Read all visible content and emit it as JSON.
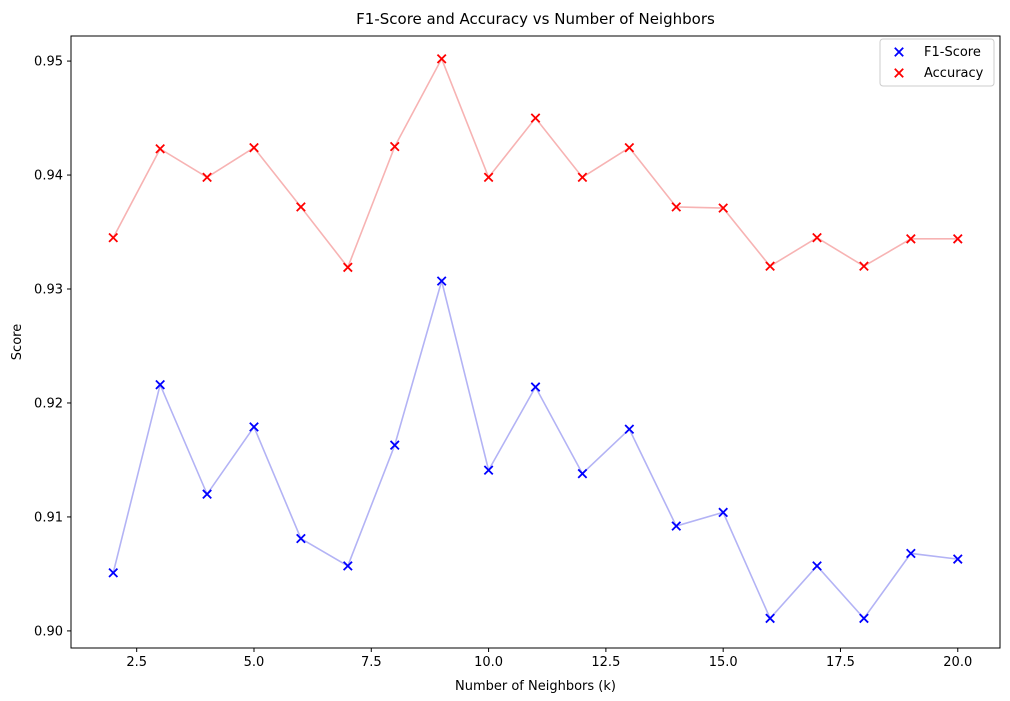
{
  "chart_data": {
    "type": "scatter",
    "title": "F1-Score and Accuracy vs Number of Neighbors",
    "xlabel": "Number of Neighbors (k)",
    "ylabel": "Score",
    "xlim": [
      1.1,
      20.9
    ],
    "ylim": [
      0.8985,
      0.9522
    ],
    "xticks": [
      "2.5",
      "5.0",
      "7.5",
      "10.0",
      "12.5",
      "15.0",
      "17.5",
      "20.0"
    ],
    "yticks": [
      "0.90",
      "0.91",
      "0.92",
      "0.93",
      "0.94",
      "0.95"
    ],
    "legend_position": "top-right",
    "grid": false,
    "x": [
      2,
      3,
      4,
      5,
      6,
      7,
      8,
      9,
      10,
      11,
      12,
      13,
      14,
      15,
      16,
      17,
      18,
      19,
      20
    ],
    "series": [
      {
        "name": "F1-Score",
        "marker_color": "#0000ff",
        "line_color": "#b3b3f5",
        "values": [
          0.9051,
          0.9216,
          0.912,
          0.9179,
          0.9081,
          0.9057,
          0.9163,
          0.9307,
          0.9141,
          0.9214,
          0.9138,
          0.9177,
          0.9092,
          0.9104,
          0.9011,
          0.9057,
          0.9011,
          0.9068,
          0.9063
        ]
      },
      {
        "name": "Accuracy",
        "marker_color": "#ff0000",
        "line_color": "#f7b3b3",
        "values": [
          0.9345,
          0.9423,
          0.9398,
          0.9424,
          0.9372,
          0.9319,
          0.9425,
          0.9502,
          0.9398,
          0.945,
          0.9398,
          0.9424,
          0.9372,
          0.9371,
          0.932,
          0.9345,
          0.932,
          0.9344,
          0.9344
        ]
      }
    ]
  }
}
